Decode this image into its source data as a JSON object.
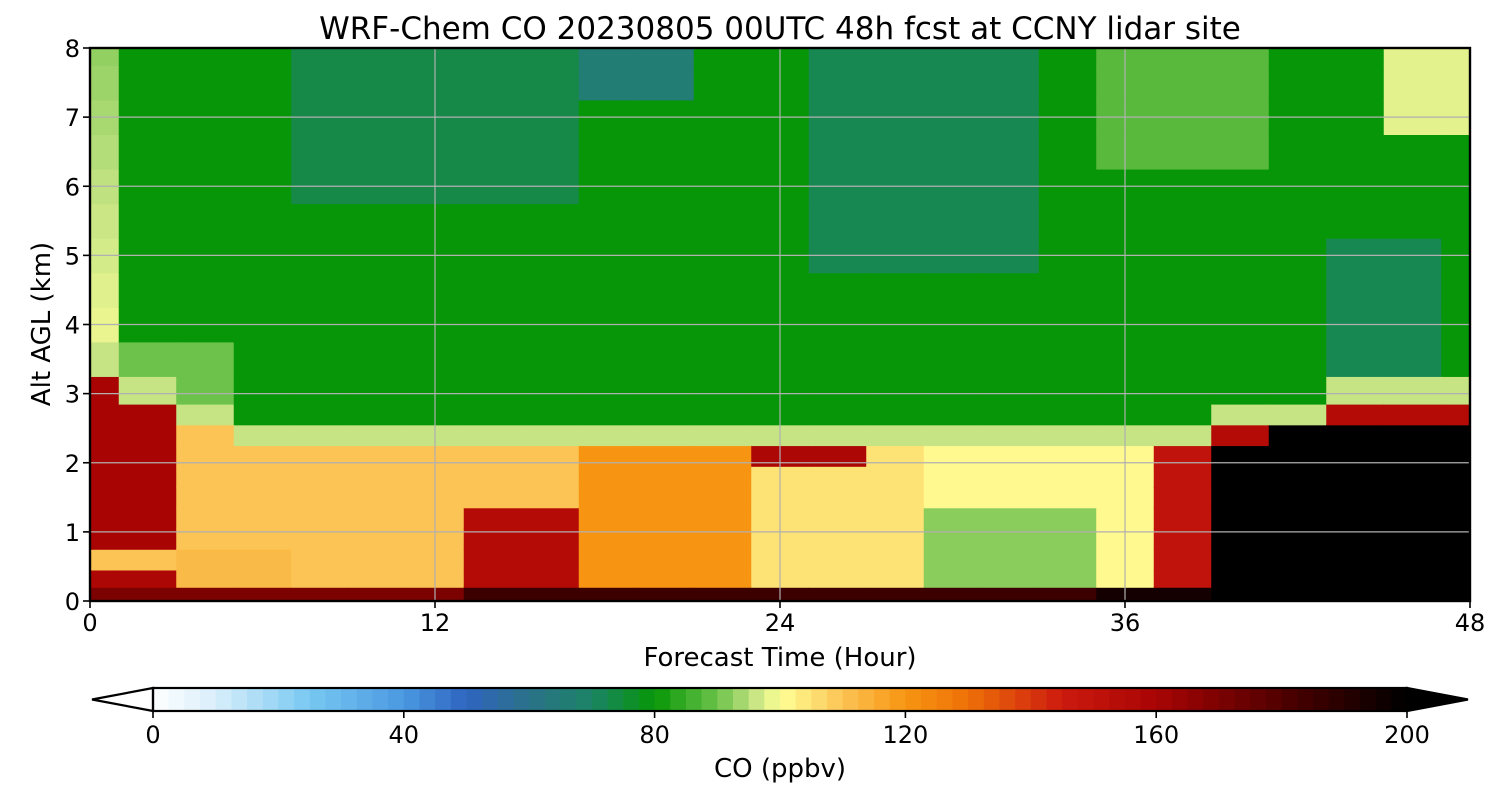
{
  "chart_data": {
    "type": "heatmap",
    "title": "WRF-Chem CO  20230805 00UTC 48h fcst at CCNY lidar site",
    "xlabel": "Forecast Time (Hour)",
    "ylabel": "Alt AGL (km)",
    "xlim": [
      0,
      48
    ],
    "ylim": [
      0,
      8
    ],
    "xticks": [
      0,
      12,
      24,
      36,
      48
    ],
    "yticks": [
      0,
      1,
      2,
      3,
      4,
      5,
      6,
      7,
      8
    ],
    "grid": true,
    "x": [
      0,
      2,
      4,
      6,
      8,
      10,
      12,
      14,
      16,
      18,
      20,
      22,
      24,
      26,
      28,
      30,
      32,
      34,
      36,
      38,
      40,
      42,
      44,
      46,
      48
    ],
    "y": [
      0.1,
      0.3,
      0.6,
      0.9,
      1.2,
      1.5,
      1.8,
      2.1,
      2.4,
      2.7,
      3.0,
      3.5,
      4.0,
      4.5,
      5.0,
      5.5,
      6.0,
      6.5,
      7.0,
      7.5,
      8.0
    ],
    "colorbar": {
      "label": "CO  (ppbv)",
      "min": 0,
      "max": 200,
      "ticks": [
        0,
        40,
        80,
        120,
        160,
        200
      ],
      "extend": "both"
    }
  }
}
